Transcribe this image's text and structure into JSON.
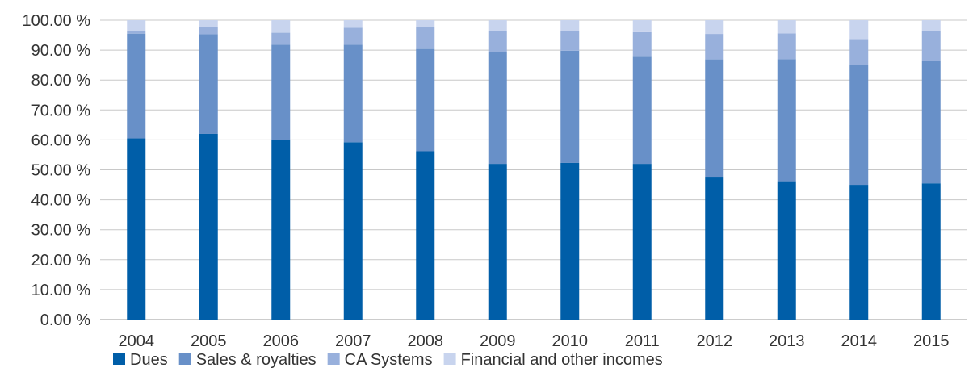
{
  "chart_data": {
    "type": "bar",
    "stacked": true,
    "categories": [
      "2004",
      "2005",
      "2006",
      "2007",
      "2008",
      "2009",
      "2010",
      "2011",
      "2012",
      "2013",
      "2014",
      "2015"
    ],
    "series": [
      {
        "name": "Dues",
        "color": "#005ea8",
        "values": [
          60.5,
          62.0,
          60.0,
          59.2,
          56.2,
          52.0,
          52.3,
          52.0,
          47.7,
          46.2,
          45.0,
          45.5
        ]
      },
      {
        "name": "Sales & royalties",
        "color": "#6890c8",
        "values": [
          35.0,
          33.3,
          31.8,
          32.6,
          34.2,
          37.3,
          37.5,
          35.8,
          39.2,
          40.8,
          40.0,
          40.8
        ]
      },
      {
        "name": "CA Systems",
        "color": "#98b0dc",
        "values": [
          0.8,
          2.5,
          4.0,
          5.7,
          7.2,
          7.2,
          6.5,
          8.2,
          8.5,
          8.6,
          8.7,
          10.2
        ]
      },
      {
        "name": "Financial and other incomes",
        "color": "#c8d4ee",
        "values": [
          3.7,
          2.2,
          4.2,
          2.5,
          2.4,
          3.5,
          3.7,
          4.0,
          4.6,
          4.4,
          6.3,
          3.5
        ]
      }
    ],
    "y_ticks": [
      "0.00 %",
      "10.00 %",
      "20.00 %",
      "30.00 %",
      "40.00 %",
      "50.00 %",
      "60.00 %",
      "70.00 %",
      "80.00 %",
      "90.00 %",
      "100.00 %"
    ],
    "ylim": [
      0,
      100
    ],
    "grid": true,
    "legend_position": "bottom-left",
    "title": "",
    "xlabel": "",
    "ylabel": ""
  }
}
